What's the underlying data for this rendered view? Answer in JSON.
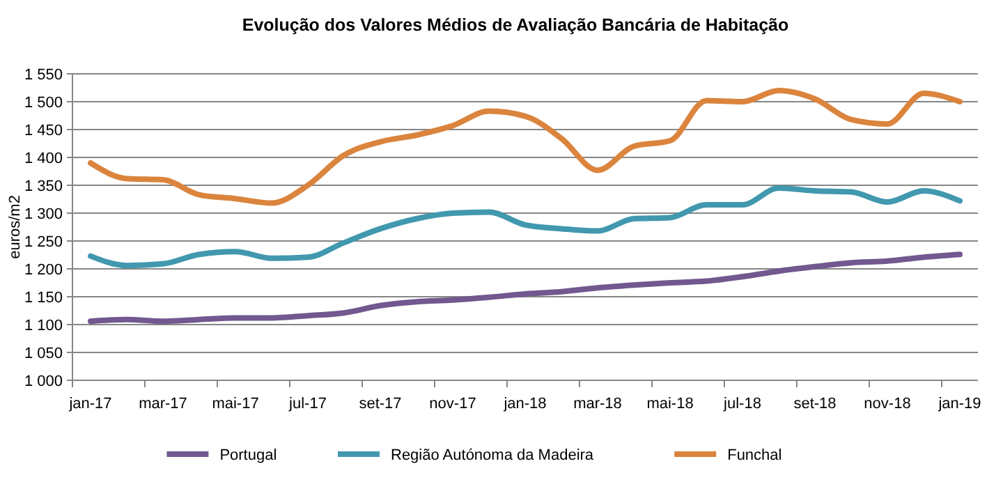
{
  "chart_data": {
    "type": "line",
    "title": "Evolução dos Valores Médios de Avaliação Bancária de Habitação",
    "ylabel": "euros/m2",
    "categories": [
      "jan-17",
      null,
      "mar-17",
      null,
      "mai-17",
      null,
      "jul-17",
      null,
      "set-17",
      null,
      "nov-17",
      null,
      "jan-18",
      null,
      "mar-18",
      null,
      "mai-18",
      null,
      "jul-18",
      null,
      "set-18",
      null,
      "nov-18",
      null,
      "jan-19"
    ],
    "series": [
      {
        "name": "Portugal",
        "color": "#71588f",
        "values": [
          1106,
          1109,
          1106,
          1109,
          1112,
          1112,
          1116,
          1121,
          1134,
          1141,
          1144,
          1149,
          1155,
          1159,
          1166,
          1171,
          1175,
          1178,
          1186,
          1196,
          1204,
          1211,
          1214,
          1221,
          1226
        ]
      },
      {
        "name": "Região Autónoma da Madeira",
        "color": "#4198af",
        "values": [
          1223,
          1206,
          1209,
          1226,
          1231,
          1219,
          1221,
          1247,
          1272,
          1290,
          1300,
          1302,
          1279,
          1272,
          1268,
          1290,
          1292,
          1315,
          1315,
          1345,
          1340,
          1338,
          1320,
          1340,
          1322
        ]
      },
      {
        "name": "Funchal",
        "color": "#db843d",
        "values": [
          1390,
          1362,
          1360,
          1333,
          1326,
          1318,
          1350,
          1404,
          1428,
          1440,
          1457,
          1483,
          1474,
          1434,
          1377,
          1420,
          1430,
          1502,
          1500,
          1520,
          1505,
          1468,
          1460,
          1515,
          1500
        ]
      }
    ],
    "ylim": [
      1000,
      1550
    ],
    "yticks": [
      {
        "value": 1000,
        "label": "1 000"
      },
      {
        "value": 1050,
        "label": "1 050"
      },
      {
        "value": 1100,
        "label": "1 100"
      },
      {
        "value": 1150,
        "label": "1 150"
      },
      {
        "value": 1200,
        "label": "1 200"
      },
      {
        "value": 1250,
        "label": "1 250"
      },
      {
        "value": 1300,
        "label": "1 300"
      },
      {
        "value": 1350,
        "label": "1 350"
      },
      {
        "value": 1400,
        "label": "1 400"
      },
      {
        "value": 1450,
        "label": "1 450"
      },
      {
        "value": 1500,
        "label": "1 500"
      },
      {
        "value": 1550,
        "label": "1 550"
      }
    ],
    "grid": "y",
    "legend": "bottom",
    "marker": "none",
    "line_style": "solid"
  }
}
